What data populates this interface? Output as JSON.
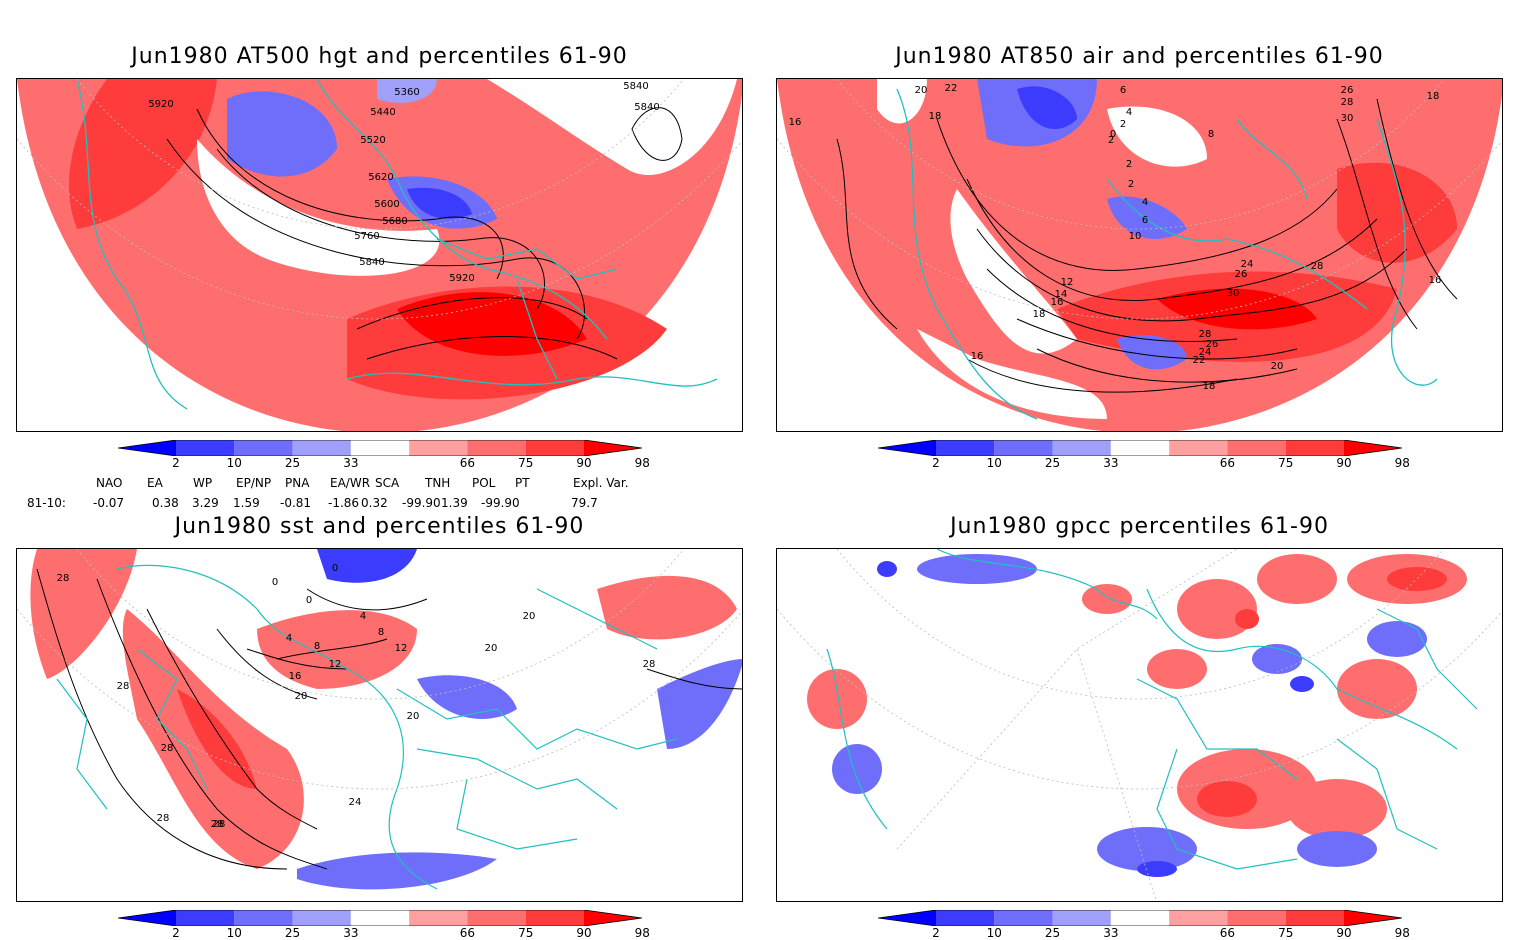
{
  "panels": [
    {
      "id": "hgt500",
      "title": "Jun1980 AT500 hgt and percentiles 61-90",
      "contour_labels": [
        "5920",
        "5360",
        "5440",
        "5520",
        "5620",
        "5600",
        "5680",
        "5760",
        "5840",
        "5920",
        "5840",
        "5840"
      ]
    },
    {
      "id": "air850",
      "title": "Jun1980 AT850 air and percentiles 61-90",
      "contour_labels": [
        "16",
        "20",
        "22",
        "18",
        "6",
        "4",
        "2",
        "0",
        "2",
        "8",
        "26",
        "28",
        "30",
        "18",
        "2",
        "2",
        "4",
        "6",
        "10",
        "12",
        "14",
        "16",
        "18",
        "24",
        "26",
        "28",
        "30",
        "28",
        "26",
        "24",
        "22",
        "20",
        "18",
        "16",
        "16"
      ]
    },
    {
      "id": "sst",
      "title": "Jun1980 sst and percentiles 61-90",
      "contour_labels": [
        "28",
        "28",
        "28",
        "28",
        "28",
        "0",
        "0",
        "0",
        "4",
        "4",
        "8",
        "8",
        "12",
        "12",
        "16",
        "20",
        "20",
        "20",
        "20",
        "24",
        "28",
        "28"
      ]
    },
    {
      "id": "gpcc",
      "title": "Jun1980 gpcc percentiles 61-90",
      "contour_labels": []
    }
  ],
  "colorbar": {
    "ticks": [
      "2",
      "10",
      "25",
      "33",
      "66",
      "75",
      "90",
      "98"
    ],
    "colors": [
      "#0000ff",
      "#3c3cff",
      "#6e6efa",
      "#a0a0fa",
      "#ffffff",
      "#ffa0a0",
      "#ff6e6e",
      "#ff3c3c",
      "#ff0000"
    ]
  },
  "indices": {
    "headers": [
      "NAO",
      "EA",
      "WP",
      "EP/NP",
      "PNA",
      "EA/WR",
      "SCA",
      "TNH",
      "POL",
      "PT",
      "Expl. Var."
    ],
    "row_label": "81-10:",
    "values": [
      "-0.07",
      "0.38",
      "3.29",
      "1.59",
      "-0.81",
      "-1.86",
      "0.32",
      "-99.90",
      "1.39",
      "-99.90",
      "79.7"
    ]
  }
}
